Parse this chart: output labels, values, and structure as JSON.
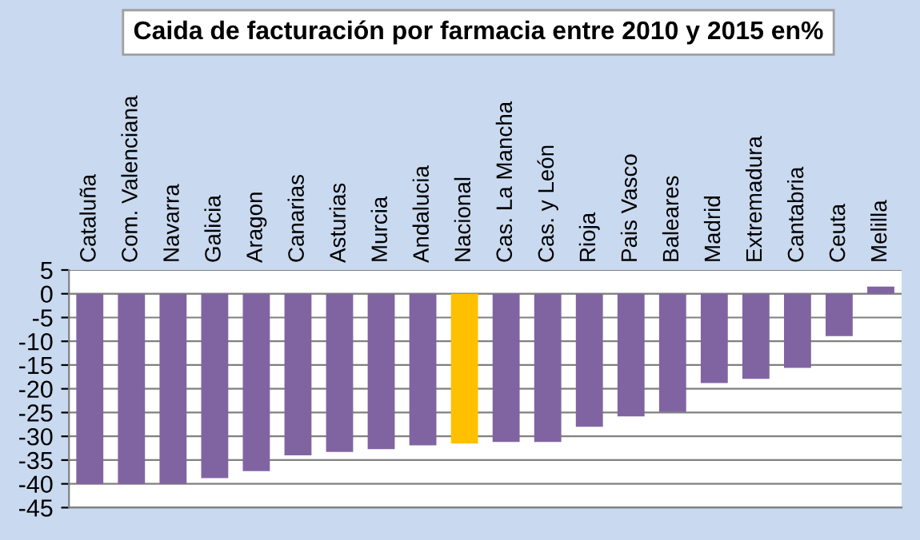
{
  "chart_data": {
    "type": "bar",
    "title": "Caida de facturación por farmacia entre 2010 y 2015 en%",
    "categories": [
      "Cataluña",
      "Com. Valenciana",
      "Navarra",
      "Galicia",
      "Aragon",
      "Canarias",
      "Asturias",
      "Murcia",
      "Andalucia",
      "Nacional",
      "Cas. La Mancha",
      "Cas. y León",
      "Rioja",
      "Pais Vasco",
      "Baleares",
      "Madrid",
      "Extremadura",
      "Cantabria",
      "Ceuta",
      "Melilla"
    ],
    "values": [
      -40,
      -40,
      -40,
      -38.8,
      -37.3,
      -34,
      -33.3,
      -32.7,
      -31.9,
      -31.5,
      -31.2,
      -31.2,
      -28,
      -25.8,
      -24.9,
      -18.8,
      -17.9,
      -15.6,
      -8.9,
      1.5
    ],
    "colors": [
      "#8064a2",
      "#8064a2",
      "#8064a2",
      "#8064a2",
      "#8064a2",
      "#8064a2",
      "#8064a2",
      "#8064a2",
      "#8064a2",
      "#ffc000",
      "#8064a2",
      "#8064a2",
      "#8064a2",
      "#8064a2",
      "#8064a2",
      "#8064a2",
      "#8064a2",
      "#8064a2",
      "#8064a2",
      "#8064a2"
    ],
    "ylim": [
      -45,
      5
    ],
    "yticks": [
      -45,
      -40,
      -35,
      -30,
      -25,
      -20,
      -15,
      -10,
      -5,
      0,
      5
    ],
    "grid": "y"
  }
}
